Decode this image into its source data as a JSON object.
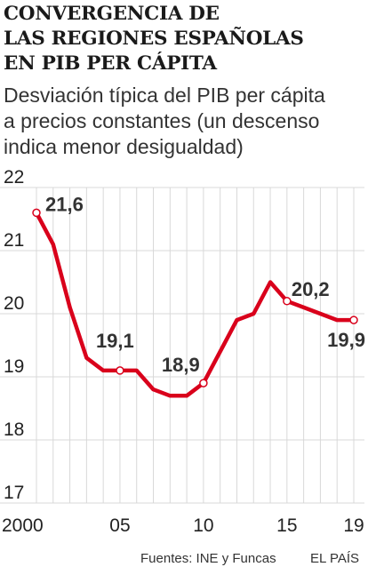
{
  "header": {
    "title_lines": [
      "CONVERGENCIA DE",
      "LAS REGIONES ESPAÑOLAS",
      "EN PIB PER CÁPITA"
    ],
    "subtitle_lines": [
      "Desviación típica del PIB per cápita",
      "a precios constantes (un descenso",
      "indica menor desigualdad)"
    ]
  },
  "chart_data": {
    "type": "line",
    "title": "CONVERGENCIA DE LAS REGIONES ESPAÑOLAS EN PIB PER CÁPITA",
    "subtitle": "Desviación típica del PIB per cápita a precios constantes (un descenso indica menor desigualdad)",
    "xlabel": "",
    "ylabel": "",
    "x": [
      2000,
      2001,
      2002,
      2003,
      2004,
      2005,
      2006,
      2007,
      2008,
      2009,
      2010,
      2011,
      2012,
      2013,
      2014,
      2015,
      2016,
      2017,
      2018,
      2019
    ],
    "series": [
      {
        "values": [
          21.6,
          21.1,
          20.1,
          19.3,
          19.1,
          19.1,
          19.1,
          18.8,
          18.7,
          18.7,
          18.9,
          19.4,
          19.9,
          20.0,
          20.5,
          20.2,
          20.1,
          20.0,
          19.9,
          19.9
        ],
        "color": "#d9001b"
      }
    ],
    "ylim": [
      17,
      22
    ],
    "y_ticks": [
      17,
      18,
      19,
      20,
      21,
      22
    ],
    "x_ticks": [
      2000,
      2005,
      2010,
      2015,
      2019
    ],
    "x_tick_labels": [
      "2000",
      "05",
      "10",
      "15",
      "19"
    ],
    "annotations": [
      {
        "x": 2000,
        "label": "21,6"
      },
      {
        "x": 2005,
        "label": "19,1"
      },
      {
        "x": 2010,
        "label": "18,9"
      },
      {
        "x": 2015,
        "label": "20,2"
      },
      {
        "x": 2019,
        "label": "19,9"
      }
    ],
    "grid": {
      "horizontal": true,
      "vertical": true
    },
    "grid_color": "#d8d8d8"
  },
  "footer": {
    "source": "Fuentes: INE y Funcas",
    "brand": "EL PAÍS"
  }
}
